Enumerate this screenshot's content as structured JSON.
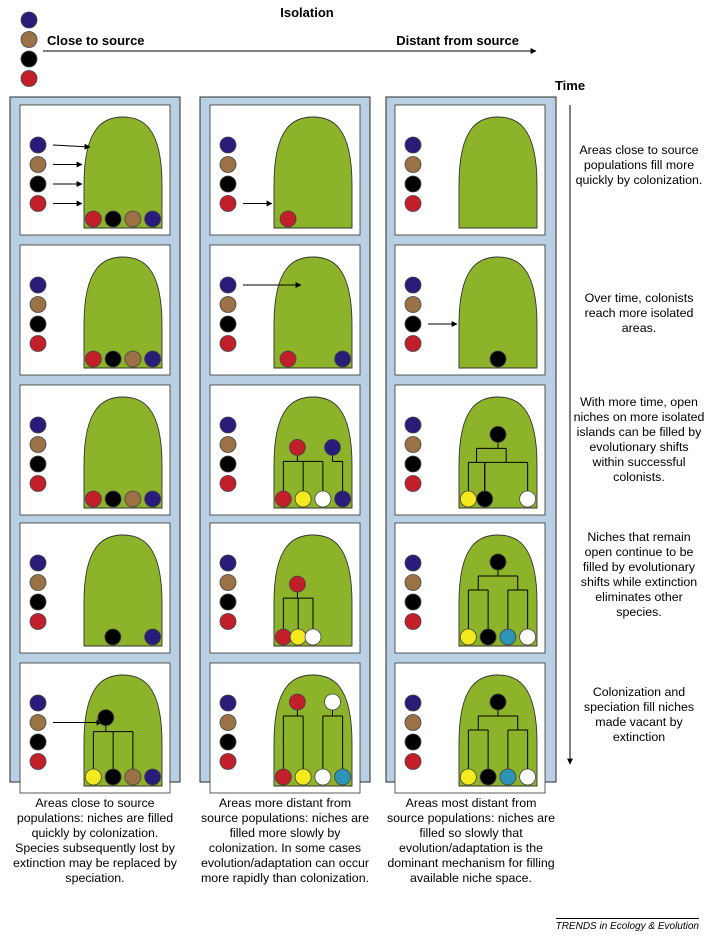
{
  "header": {
    "isolation_label": "Isolation",
    "close_label": "Close to source",
    "distant_label": "Distant from source",
    "time_label": "Time"
  },
  "colors": {
    "blue": "#2a1d7a",
    "brown": "#9a7246",
    "black": "#000000",
    "red": "#c21f2a",
    "yellow": "#f4ea1e",
    "white": "#ffffff",
    "teal": "#2d94b8",
    "island": "#8db32a",
    "column": "#b9cfe3"
  },
  "source_legend": [
    "blue",
    "brown",
    "black",
    "red"
  ],
  "steps": [
    "Areas close to source populations fill more quickly by colonization.",
    "Over time, colonists reach more isolated areas.",
    "With more time, open niches on more isolated islands can be filled by evolutionary shifts within successful colonists.",
    "Niches that remain open continue to be filled by evolutionary shifts while extinction eliminates other species.",
    "Colonization and speciation fill niches made vacant by extinction"
  ],
  "captions": [
    "Areas close to source populations: niches are filled quickly by colonization. Species subsequently lost by extinction may be replaced by speciation.",
    "Areas more distant from source populations: niches are filled more slowly by colonization. In some cases evolution/adaptation can occur more rapidly than colonization.",
    "Areas most distant from source populations: niches are filled so slowly that evolution/adaptation is the dominant mechanism for filling available niche space."
  ],
  "footer": "TRENDS in Ecology & Evolution"
}
